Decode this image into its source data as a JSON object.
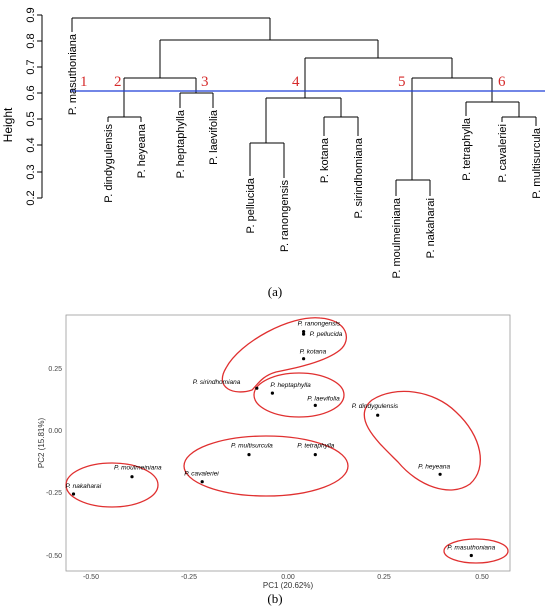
{
  "panel_a": {
    "caption": "(a)",
    "ylabel": "Height",
    "yticks": [
      "0.2",
      "0.3",
      "0.4",
      "0.5",
      "0.6",
      "0.7",
      "0.8",
      "0.9"
    ],
    "cut_height": 0.6,
    "cut_color": "#1f3fd6",
    "cluster_numbers": [
      "1",
      "2",
      "3",
      "4",
      "5",
      "6"
    ],
    "leaves": [
      "P. masuthoniana",
      "P. dindygulensis",
      "P. heyeana",
      "P. heptaphylla",
      "P. laevifolia",
      "P. pellucida",
      "P. ranongensis",
      "P. kotana",
      "P. sirindhomiana",
      "P. moulmeiniana",
      "P. nakaharai",
      "P. tetraphylla",
      "P. cavaleriei",
      "P. multisurcula"
    ]
  },
  "panel_b": {
    "caption": "(b)",
    "xlabel": "PC1 (20.62%)",
    "ylabel": "PC2 (15.81%)",
    "xticks": [
      "-0.50",
      "-0.25",
      "0.00",
      "0.25",
      "0.50"
    ],
    "yticks": [
      "0.25",
      "0.00",
      "-0.25",
      "-0.50"
    ],
    "ellipse_color": "#e03030",
    "points": [
      {
        "label": "P. ranongensis",
        "x": 0.04,
        "y": 0.4
      },
      {
        "label": "P. pellucida",
        "x": 0.04,
        "y": 0.39
      },
      {
        "label": "P. kotana",
        "x": 0.04,
        "y": 0.29
      },
      {
        "label": "P. sirindhomiana",
        "x": -0.08,
        "y": 0.17
      },
      {
        "label": "P. heptaphylla",
        "x": -0.04,
        "y": 0.15
      },
      {
        "label": "P. laevifolia",
        "x": 0.07,
        "y": 0.1
      },
      {
        "label": "P. dindygulensis",
        "x": 0.23,
        "y": 0.06
      },
      {
        "label": "P. heyeana",
        "x": 0.39,
        "y": -0.18
      },
      {
        "label": "P. multisurcula",
        "x": -0.1,
        "y": -0.1
      },
      {
        "label": "P. tetraphylla",
        "x": 0.07,
        "y": -0.1
      },
      {
        "label": "P. cavaleriei",
        "x": -0.22,
        "y": -0.21
      },
      {
        "label": "P. moulmeiniana",
        "x": -0.4,
        "y": -0.19
      },
      {
        "label": "P. nakaharai",
        "x": -0.55,
        "y": -0.26
      },
      {
        "label": "P. masuthoniana",
        "x": 0.47,
        "y": -0.51
      }
    ]
  }
}
